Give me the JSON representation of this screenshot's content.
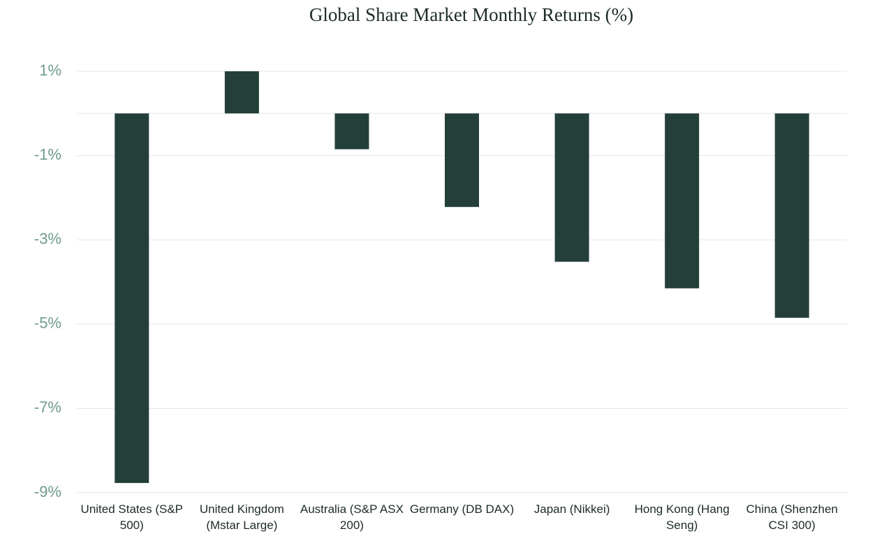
{
  "chart_data": {
    "type": "bar",
    "title": "Global Share Market Monthly Returns (%)",
    "categories": [
      "United States (S&P 500)",
      "United Kingdom (Mstar Large)",
      "Australia (S&P ASX 200)",
      "Germany (DB DAX)",
      "Japan (Nikkei)",
      "Hong Kong (Hang Seng)",
      "China (Shenzhen CSI 300)"
    ],
    "values": [
      -8.77,
      1.0,
      -0.85,
      -2.22,
      -3.52,
      -4.15,
      -4.85
    ],
    "color": "#243f3a",
    "ylim": [
      -9,
      1
    ],
    "yticks": [
      {
        "value": 1,
        "label": "1%"
      },
      {
        "value": -1,
        "label": "-1%"
      },
      {
        "value": -3,
        "label": "-3%"
      },
      {
        "value": -5,
        "label": "-5%"
      },
      {
        "value": -7,
        "label": "-7%"
      },
      {
        "value": -9,
        "label": "-9%"
      }
    ],
    "grid": true
  }
}
